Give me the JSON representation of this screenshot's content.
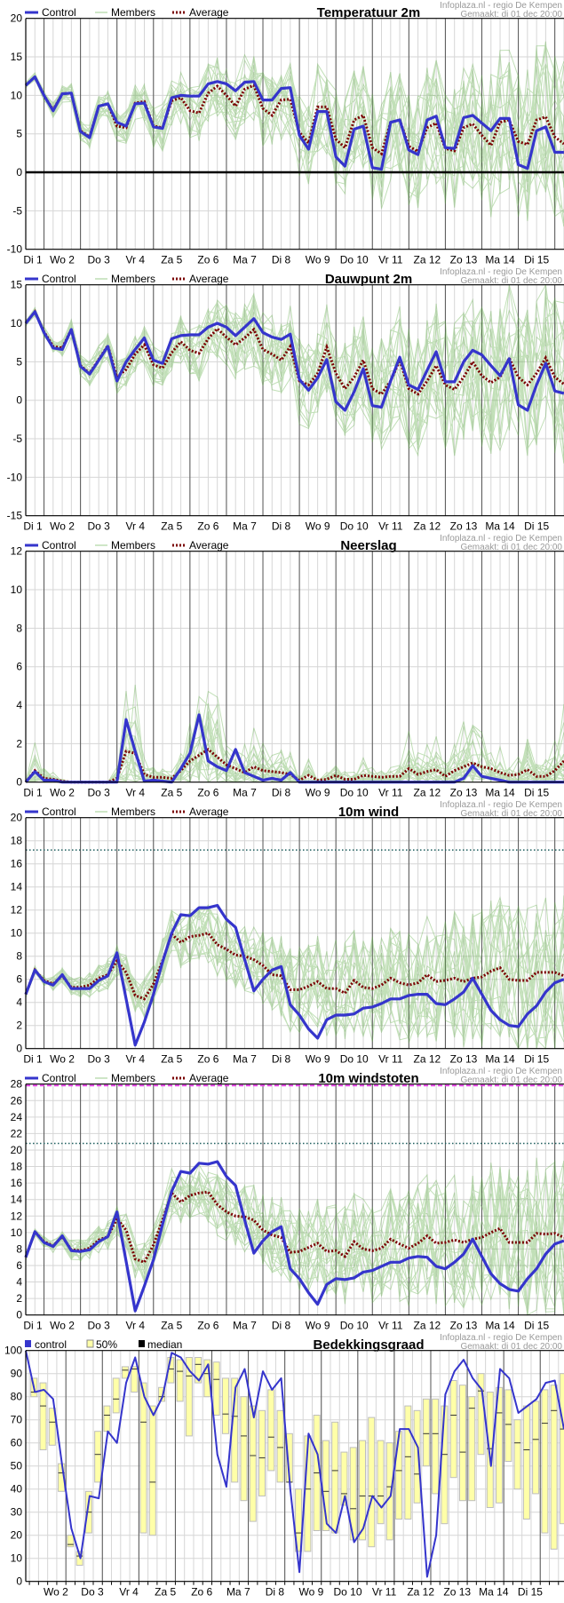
{
  "credit": {
    "source": "Infoplaza.nl - regio De Kempen",
    "made": "Gemaakt: di 01 dec 20:00"
  },
  "legend": {
    "control": "Control",
    "members": "Members",
    "average": "Average"
  },
  "legend_cloud": {
    "control": "control",
    "band": "50%",
    "median": "median"
  },
  "days": [
    "Di 1",
    "Wo 2",
    "Do 3",
    "Vr 4",
    "Za 5",
    "Zo 6",
    "Ma 7",
    "Di 8",
    "Wo 9",
    "Do 10",
    "Vr 11",
    "Za 12",
    "Zo 13",
    "Ma 14",
    "Di 15"
  ],
  "colors": {
    "control": "#3535cc",
    "members": "#5fae45",
    "average": "#7a0000",
    "band": "#ffffa8",
    "band_border": "#bdbdbd",
    "threshold": "#1f5f5f",
    "gust_warning": "#ee44ee"
  },
  "chart_data": [
    {
      "type": "line",
      "title": "Temperatuur 2m",
      "ylim": [
        -10,
        20
      ],
      "yticks": [
        -10,
        -5,
        0,
        5,
        10,
        15,
        20
      ],
      "zero_line": true,
      "thresholds": [],
      "series": [
        {
          "name": "Control",
          "values": [
            11.3,
            12.4,
            10,
            8,
            10.2,
            10.3,
            5.3,
            4.5,
            8.6,
            8.9,
            6.5,
            6,
            8.9,
            9,
            5.9,
            5.7,
            9.7,
            10,
            9.9,
            9.9,
            11.5,
            11.8,
            11.5,
            10.6,
            11.7,
            11.8,
            9.4,
            9.4,
            10.9,
            11,
            4.8,
            3,
            7.9,
            7.9,
            2,
            0.8,
            5.6,
            6,
            0.6,
            0.4,
            6.5,
            6.8,
            2.9,
            2.3,
            6.8,
            7.3,
            3.2,
            3.1,
            7.1,
            7.4,
            6.4,
            5.4,
            7,
            7,
            1,
            0.5,
            5.4,
            5.9,
            2.6,
            2.6
          ]
        },
        {
          "name": "Average",
          "values": [
            11.3,
            12.4,
            10,
            8.1,
            10.2,
            10.3,
            5.4,
            4.6,
            8.6,
            8.9,
            6,
            5.8,
            9,
            9.2,
            6,
            5.8,
            9.3,
            9.7,
            8,
            7.7,
            10.3,
            11.2,
            10,
            8.6,
            10.8,
            11.3,
            8.3,
            7.4,
            9.4,
            9.5,
            5.2,
            3.8,
            8.5,
            8.5,
            4.3,
            3.2,
            6.8,
            7.4,
            3.2,
            2.4,
            6.5,
            6.8,
            3.4,
            2.7,
            5.8,
            6.4,
            3.1,
            2.8,
            5.8,
            6.3,
            4.8,
            3.5,
            6.5,
            6.8,
            4,
            3.6,
            6.8,
            7.2,
            4.6,
            3.7
          ]
        }
      ]
    },
    {
      "type": "line",
      "title": "Dauwpunt 2m",
      "ylim": [
        -15,
        15
      ],
      "yticks": [
        -15,
        -10,
        -5,
        0,
        5,
        10,
        15
      ],
      "zero_line": false,
      "thresholds": [],
      "series": [
        {
          "name": "Control",
          "values": [
            10,
            11.5,
            8.8,
            6.8,
            6.6,
            9.2,
            4.4,
            3.4,
            5.2,
            7,
            2.5,
            5,
            6.6,
            8.1,
            5.2,
            4.8,
            8,
            8.4,
            8.5,
            8.5,
            9.5,
            10,
            9.5,
            8.4,
            9.5,
            10.6,
            8.8,
            8.2,
            7.9,
            8.6,
            2.7,
            1.3,
            2.9,
            5.3,
            -0.2,
            -1.3,
            1.1,
            4.1,
            -0.7,
            -0.9,
            2.5,
            5.6,
            2,
            1.4,
            3.9,
            6.3,
            2.4,
            2.4,
            5,
            6.5,
            5.9,
            4.5,
            3.2,
            5.4,
            -0.6,
            -1.3,
            2,
            4.8,
            1.2,
            0.9
          ]
        },
        {
          "name": "Average",
          "values": [
            10,
            11.5,
            8.9,
            7,
            6.8,
            9.2,
            4.5,
            3.5,
            5.3,
            7.1,
            3,
            4,
            6,
            7.2,
            4.6,
            4.2,
            6.2,
            7.6,
            6.5,
            6.1,
            8,
            9.3,
            8.2,
            7.2,
            8.1,
            9.2,
            6.6,
            6,
            5.2,
            7,
            2.5,
            2,
            3.5,
            6.9,
            3.5,
            1.5,
            3,
            5.2,
            1.5,
            0.8,
            2.5,
            5.2,
            1.5,
            0.8,
            2.5,
            4.5,
            2,
            1.4,
            3,
            5,
            3.2,
            2.3,
            3,
            5.5,
            3,
            2,
            3.5,
            5.5,
            3,
            2.1
          ]
        }
      ]
    },
    {
      "type": "line",
      "title": "Neerslag",
      "ylim": [
        0,
        12
      ],
      "yticks": [
        0,
        2,
        4,
        6,
        8,
        10,
        12
      ],
      "zero_line": false,
      "thresholds": [],
      "nonnegative": true,
      "series": [
        {
          "name": "Control",
          "values": [
            0,
            0.55,
            0.1,
            0.1,
            0,
            0,
            0,
            0,
            0,
            0,
            0,
            3.25,
            1.6,
            0.05,
            0.1,
            0.05,
            0,
            0.7,
            1.5,
            3.5,
            1.1,
            0.8,
            0.6,
            1.7,
            0.5,
            0.3,
            0.1,
            0.2,
            0.1,
            0.5,
            0,
            0,
            0,
            0,
            0,
            0,
            0,
            0,
            0,
            0,
            0,
            0,
            0,
            0,
            0,
            0,
            0,
            0,
            0.2,
            0.85,
            0.3,
            0.2,
            0.1,
            0,
            0,
            0,
            0,
            0,
            0,
            0
          ]
        },
        {
          "name": "Average",
          "values": [
            0,
            0.6,
            0.2,
            0.15,
            0.05,
            0,
            0,
            0,
            0,
            0,
            0.2,
            1.6,
            1.5,
            0.4,
            0.25,
            0.25,
            0.2,
            0.6,
            1.1,
            1.4,
            1.7,
            1.3,
            0.9,
            0.7,
            0.5,
            0.8,
            0.6,
            0.55,
            0.5,
            0.4,
            0.1,
            0.35,
            0.1,
            0.15,
            0.35,
            0.15,
            0.15,
            0.35,
            0.3,
            0.25,
            0.3,
            0.3,
            0.7,
            0.4,
            0.55,
            0.65,
            0.3,
            0.6,
            0.8,
            1,
            0.8,
            0.7,
            0.5,
            0.35,
            0.4,
            0.65,
            0.3,
            0.3,
            0.6,
            1.1
          ]
        }
      ]
    },
    {
      "type": "line",
      "title": "10m wind",
      "ylim": [
        0,
        20
      ],
      "yticks": [
        0,
        2,
        4,
        6,
        8,
        10,
        12,
        14,
        16,
        18,
        20
      ],
      "zero_line": false,
      "thresholds": [
        {
          "value": 17.2,
          "style": "dotted"
        }
      ],
      "series": [
        {
          "name": "Control",
          "values": [
            4.7,
            6.8,
            5.8,
            5.5,
            6.4,
            5.2,
            5.2,
            5.2,
            5.9,
            6.3,
            8.3,
            4.3,
            0.3,
            2.3,
            4.7,
            7.5,
            10,
            11.6,
            11.5,
            12.2,
            12.2,
            12.4,
            11.2,
            10.5,
            7.7,
            5,
            6,
            6.8,
            7.1,
            3.8,
            2.9,
            1.7,
            0.9,
            2.5,
            2.9,
            2.9,
            3,
            3.5,
            3.6,
            3.9,
            4.3,
            4.3,
            4.6,
            4.7,
            4.7,
            3.9,
            3.8,
            4.3,
            4.9,
            6.1,
            4.7,
            3.3,
            2.5,
            2,
            1.9,
            3,
            3.7,
            4.9,
            5.7,
            6
          ]
        },
        {
          "name": "Average",
          "values": [
            4.7,
            6.8,
            5.9,
            5.6,
            6.3,
            5.3,
            5.3,
            5.5,
            6.1,
            6.4,
            7.6,
            6.6,
            4.6,
            4.3,
            5.6,
            7.6,
            9.9,
            9.2,
            9.7,
            9.8,
            10,
            9,
            8.6,
            8.1,
            8,
            7.7,
            7.2,
            6.4,
            6.3,
            5.1,
            5.1,
            5.4,
            5.8,
            5.2,
            5.2,
            4.8,
            5.9,
            5.3,
            5.2,
            5.5,
            6.1,
            5.7,
            5.5,
            5.7,
            6.4,
            5.8,
            5.9,
            6.1,
            5.8,
            6.1,
            6.2,
            6.7,
            7,
            6,
            5.9,
            5.9,
            6.6,
            6.6,
            6.6,
            6.3
          ]
        }
      ]
    },
    {
      "type": "line",
      "title": "10m windstoten",
      "ylim": [
        0,
        28
      ],
      "yticks": [
        0,
        2,
        4,
        6,
        8,
        10,
        12,
        14,
        16,
        18,
        20,
        22,
        24,
        26,
        28
      ],
      "zero_line": false,
      "thresholds": [
        {
          "value": 20.8,
          "style": "dotted"
        },
        {
          "value": 28,
          "style": "dashed-warning"
        }
      ],
      "series": [
        {
          "name": "Control",
          "values": [
            7,
            10.1,
            8.8,
            8.3,
            9.6,
            7.8,
            7.7,
            7.9,
            8.9,
            9.5,
            12.5,
            6.5,
            0.5,
            3.5,
            6.7,
            11,
            15,
            17.4,
            17.2,
            18.4,
            18.3,
            18.6,
            16.8,
            15.7,
            11.5,
            7.5,
            9,
            10.1,
            10.7,
            5.6,
            4.4,
            2.7,
            1.3,
            3.7,
            4.4,
            4.3,
            4.5,
            5.2,
            5.4,
            5.9,
            6.4,
            6.4,
            6.9,
            7.1,
            7,
            5.9,
            5.6,
            6.4,
            7.4,
            9.2,
            7.1,
            5,
            3.8,
            3.1,
            2.9,
            4.4,
            5.6,
            7.4,
            8.6,
            9
          ]
        },
        {
          "name": "Average",
          "values": [
            7,
            10.1,
            8.9,
            8.4,
            9.5,
            7.9,
            7.8,
            8.1,
            9.1,
            9.5,
            11.7,
            10.3,
            6.8,
            6.4,
            8.5,
            11.5,
            14.8,
            13.7,
            14.5,
            14.8,
            14.9,
            13.4,
            12.5,
            12,
            11.9,
            11.5,
            10.3,
            9.7,
            9.4,
            7.6,
            7.7,
            8.2,
            8.7,
            7.7,
            7.8,
            7.1,
            8.9,
            8,
            7.8,
            8.1,
            9.2,
            8.6,
            8.1,
            8.7,
            9.6,
            8.7,
            8.8,
            9.1,
            8.8,
            9.2,
            9.4,
            10,
            10.5,
            8.8,
            8.8,
            8.8,
            9.9,
            9.8,
            9.9,
            9.4
          ]
        }
      ]
    },
    {
      "type": "bar",
      "title": "Bedekkingsgraad",
      "ylim": [
        0,
        100
      ],
      "yticks": [
        0,
        10,
        20,
        30,
        40,
        50,
        60,
        70,
        80,
        90,
        100
      ],
      "control": [
        100,
        82,
        83,
        79,
        50,
        23,
        10,
        37,
        36,
        65,
        60,
        86,
        97,
        80,
        72,
        80,
        99,
        97,
        91,
        87,
        94,
        55,
        41,
        84,
        92,
        71,
        91,
        83,
        88,
        40,
        4,
        64,
        55,
        25,
        21,
        37,
        17,
        23,
        37,
        32,
        37,
        66,
        66,
        58,
        2,
        20,
        81,
        91,
        96,
        88,
        83,
        50,
        92,
        88,
        73,
        76,
        79,
        86,
        87,
        66
      ],
      "band_low": [
        80,
        57,
        59,
        39,
        15,
        7,
        21,
        43,
        65,
        73,
        88,
        82,
        21,
        20,
        78,
        86,
        78,
        63,
        86,
        80,
        72,
        64,
        43,
        35,
        26,
        37,
        48,
        43,
        43,
        13,
        13,
        22,
        22,
        21,
        33,
        18,
        18,
        15,
        25,
        18,
        27,
        27,
        34,
        50,
        38,
        25,
        45,
        35,
        35,
        55,
        32,
        34,
        52,
        40,
        27,
        38,
        21,
        14,
        25
      ],
      "band_high": [
        88,
        86,
        75,
        51,
        20,
        13,
        39,
        65,
        76,
        88,
        93,
        93,
        86,
        76,
        84,
        97,
        96,
        97,
        97,
        96,
        95,
        88,
        88,
        80,
        76,
        74,
        83,
        74,
        64,
        40,
        63,
        72,
        61,
        69,
        56,
        58,
        61,
        71,
        61,
        60,
        65,
        76,
        74,
        79,
        79,
        76,
        87,
        85,
        80,
        90,
        82,
        84,
        83,
        70,
        76,
        78,
        83,
        85,
        90
      ],
      "median": [
        82,
        76,
        69,
        47,
        16,
        11,
        30,
        55,
        72,
        79,
        91.5,
        92,
        69,
        43,
        80,
        92,
        91,
        89,
        94,
        90,
        87.5,
        72.5,
        71.5,
        63,
        54.5,
        53.5,
        62.5,
        58,
        43,
        21,
        40,
        47,
        39,
        48,
        38,
        31.5,
        37,
        37,
        37,
        41,
        48,
        54,
        46.5,
        64,
        64,
        55,
        72,
        56,
        75,
        82.5,
        57.5,
        73,
        68,
        60,
        57,
        61.5,
        68.5,
        74,
        66
      ]
    }
  ]
}
